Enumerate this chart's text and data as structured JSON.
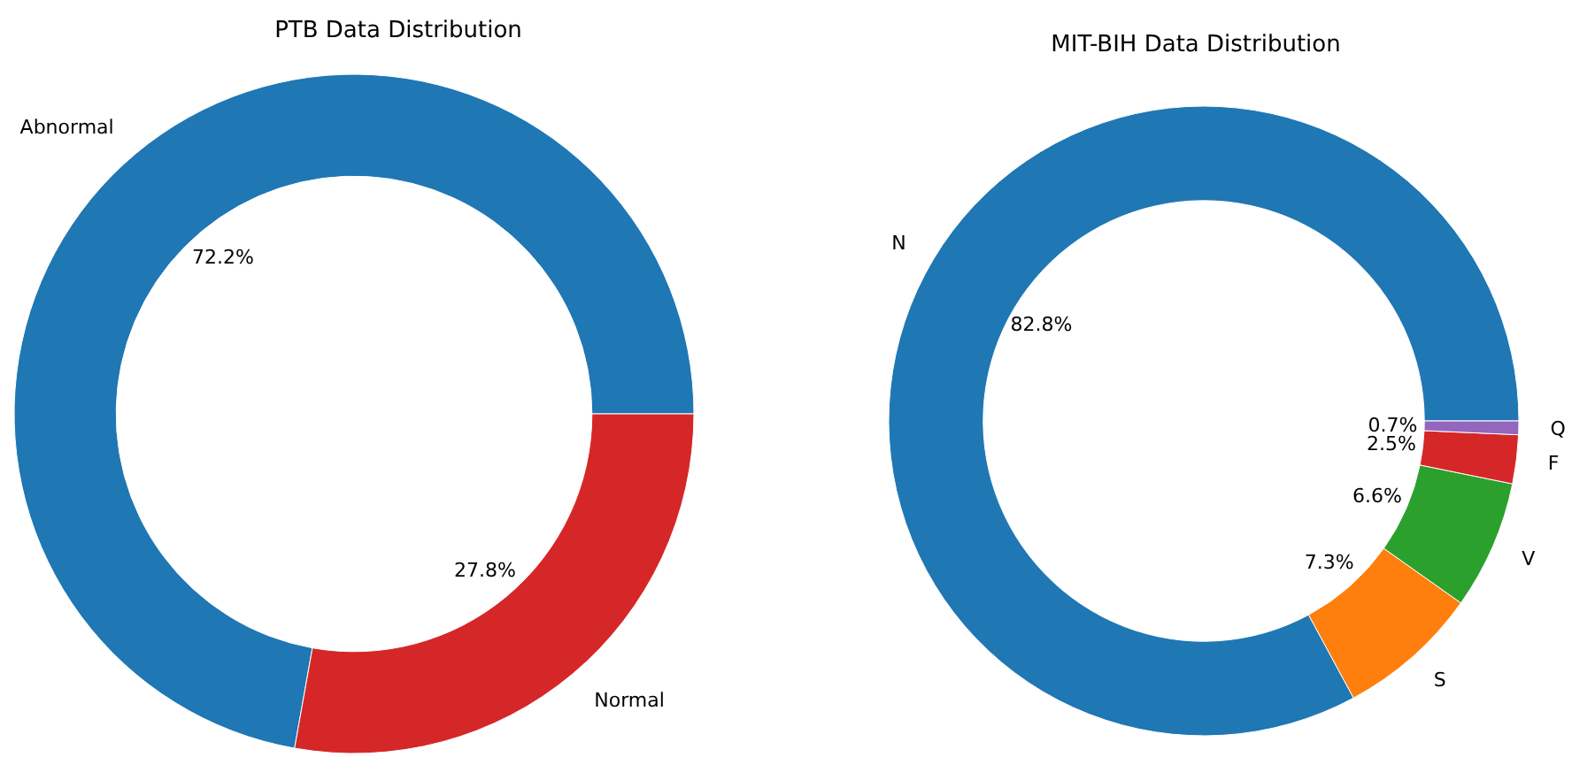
{
  "chart_data": [
    {
      "type": "donut",
      "title": "PTB Data Distribution",
      "categories": [
        "Abnormal",
        "Normal"
      ],
      "values": [
        72.2,
        27.8
      ],
      "colors": [
        "#1f77b4",
        "#d62728"
      ],
      "value_labels": [
        "72.2%",
        "27.8%"
      ]
    },
    {
      "type": "donut",
      "title": "MIT-BIH Data Distribution",
      "categories": [
        "N",
        "S",
        "V",
        "F",
        "Q"
      ],
      "values": [
        82.8,
        7.3,
        6.6,
        2.5,
        0.7
      ],
      "colors": [
        "#1f77b4",
        "#ff7f0e",
        "#2ca02c",
        "#d62728",
        "#9467bd"
      ],
      "value_labels": [
        "82.8%",
        "7.3%",
        "6.6%",
        "2.5%",
        "0.7%"
      ]
    }
  ]
}
